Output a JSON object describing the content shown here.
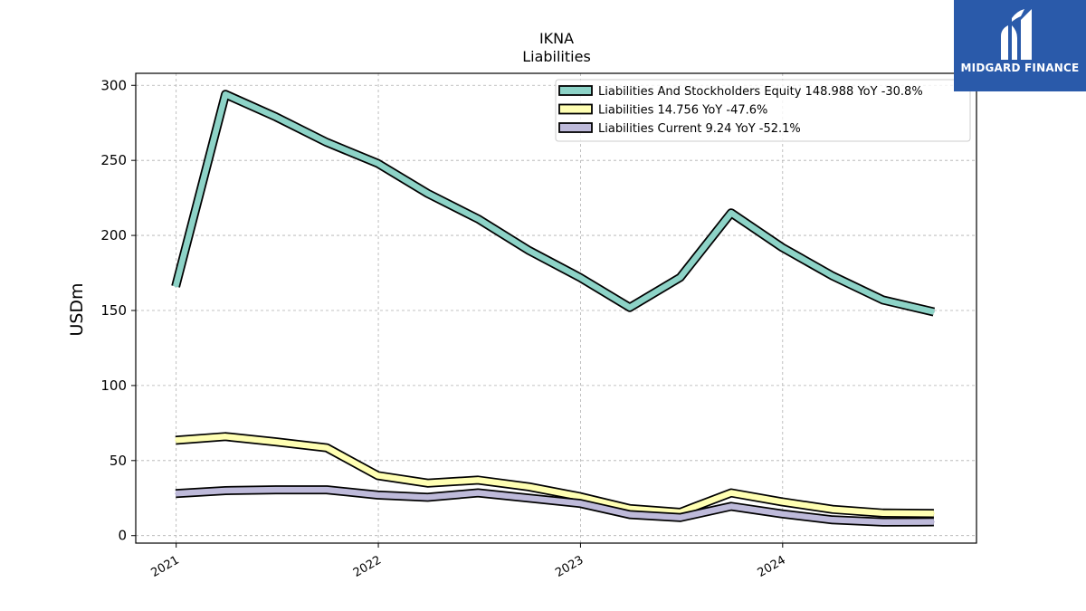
{
  "chart_data": {
    "type": "line",
    "title": "IKNA",
    "subtitle": "Liabilities",
    "xlabel": "",
    "ylabel": "USDm",
    "ylim": [
      -5,
      308
    ],
    "yticks": [
      0,
      50,
      100,
      150,
      200,
      250,
      300
    ],
    "xlim": [
      "2020-10-20",
      "2024-12-16"
    ],
    "xticks": [
      {
        "date": "2021-01-01",
        "label": "2021"
      },
      {
        "date": "2022-01-01",
        "label": "2022"
      },
      {
        "date": "2023-01-01",
        "label": "2023"
      },
      {
        "date": "2024-01-01",
        "label": "2024"
      }
    ],
    "grid": true,
    "legend_position": "top-right",
    "x": [
      "2020-12-31",
      "2021-03-31",
      "2021-06-30",
      "2021-09-30",
      "2021-12-31",
      "2022-03-31",
      "2022-06-30",
      "2022-09-30",
      "2022-12-31",
      "2023-03-31",
      "2023-06-30",
      "2023-09-30",
      "2023-12-31",
      "2024-03-31",
      "2024-06-30",
      "2024-09-30"
    ],
    "series": [
      {
        "name": "Liabilities And Stockholders Equity  148.988 YoY -30.8%",
        "color": "#8dd3c7",
        "values": [
          166,
          294,
          279,
          262,
          248,
          228,
          211,
          190,
          172,
          152,
          172,
          215,
          192,
          173,
          157,
          149
        ]
      },
      {
        "name": "Liabilities  14.756 YoY -47.6%",
        "color": "#ffffb3",
        "values": [
          63.5,
          66,
          62.5,
          58.5,
          40,
          35,
          37,
          32.5,
          26,
          18,
          15.5,
          28.5,
          22.5,
          17.5,
          15,
          14.8
        ]
      },
      {
        "name": "Liabilities Current  9.24 YoY -52.1%",
        "color": "#bebada",
        "values": [
          28,
          30,
          30.5,
          30.5,
          27,
          25.5,
          28.5,
          25,
          21.5,
          14,
          12,
          19.5,
          14.5,
          10.5,
          9,
          9.2
        ]
      }
    ]
  },
  "logo": {
    "text": "MIDGARD FINANCE"
  }
}
